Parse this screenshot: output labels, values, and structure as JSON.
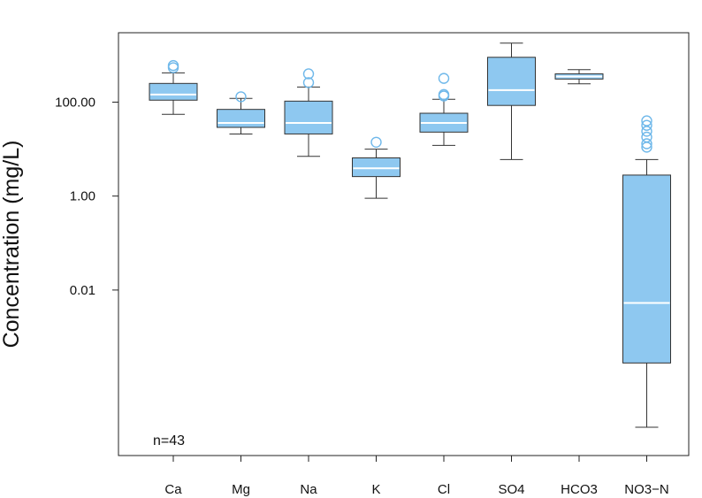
{
  "chart_data": {
    "type": "box",
    "title": "",
    "xlabel": "",
    "ylabel": "Concentration (mg/L)",
    "yscale": "log10",
    "ylim": [
      3e-06,
      3000
    ],
    "yticks": [
      100,
      1,
      0.01
    ],
    "ytick_labels": [
      "100.00",
      "1.00",
      "0.01"
    ],
    "annotation": "n=43",
    "box_color": "#8ec8f0",
    "median_color": "#ffffff",
    "outlier_color": "#6fb8ea",
    "grid": false,
    "legend": "none",
    "categories": [
      "Ca",
      "Mg",
      "Na",
      "K",
      "Cl",
      "SO4",
      "HCO3",
      "NO3−N"
    ],
    "boxes": [
      {
        "name": "Ca",
        "whisker_low": 55,
        "q1": 110,
        "median": 145,
        "q3": 250,
        "whisker_high": 420,
        "outliers": [
          540,
          600
        ]
      },
      {
        "name": "Mg",
        "whisker_low": 21,
        "q1": 29,
        "median": 36,
        "q3": 70,
        "whisker_high": 120,
        "outliers": [
          130
        ]
      },
      {
        "name": "Na",
        "whisker_low": 7,
        "q1": 21,
        "median": 36,
        "q3": 105,
        "whisker_high": 210,
        "outliers": [
          260,
          400
        ]
      },
      {
        "name": "K",
        "whisker_low": 0.9,
        "q1": 2.6,
        "median": 3.9,
        "q3": 6.5,
        "whisker_high": 10,
        "outliers": [
          14
        ]
      },
      {
        "name": "Cl",
        "whisker_low": 12,
        "q1": 23,
        "median": 36,
        "q3": 58,
        "whisker_high": 115,
        "outliers": [
          135,
          145,
          320
        ]
      },
      {
        "name": "SO4",
        "whisker_low": 6,
        "q1": 85,
        "median": 180,
        "q3": 900,
        "whisker_high": 1800,
        "outliers": []
      },
      {
        "name": "HCO3",
        "whisker_low": 245,
        "q1": 310,
        "median": 350,
        "q3": 400,
        "whisker_high": 490,
        "outliers": []
      },
      {
        "name": "NO3−N",
        "whisker_low": 1.2e-05,
        "q1": 0.00028,
        "median": 0.0053,
        "q3": 2.8,
        "whisker_high": 6,
        "outliers": [
          11,
          13,
          18,
          24,
          32,
          40
        ]
      }
    ]
  }
}
